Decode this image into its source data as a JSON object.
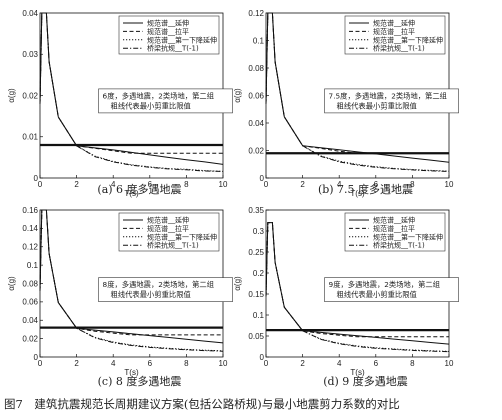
{
  "figure_caption": "图7　建筑抗震规范长周期建议方案(包括公路桥规)与最小地震剪力系数的对比",
  "legend_labels": [
    "规范谱__延伸",
    "规范谱__拉平",
    "规范谱__第一下降延伸",
    "桥梁抗规__T(-1)"
  ],
  "chart_data": [
    {
      "type": "line",
      "caption": "(a) 6 度多遇地震",
      "xlabel": "T(s)",
      "ylabel": "α(g)",
      "xlim": [
        0,
        10
      ],
      "ylim": [
        0,
        0.04
      ],
      "xticks": [
        "0",
        "2",
        "4",
        "6",
        "8",
        "10"
      ],
      "yticks": [
        "0",
        "0.01",
        "0.02",
        "0.03",
        "0.04"
      ],
      "annotation": [
        "6度，多遇地震，2类场地，第二组",
        "粗线代表最小剪重比限值"
      ],
      "min_shear_ratio": 0.008,
      "series": [
        {
          "name": "规范谱__延伸",
          "style": "solid",
          "x": [
            0,
            0.1,
            0.35,
            0.5,
            1,
            2,
            3,
            4,
            5,
            6,
            7,
            8,
            9,
            10
          ],
          "y": [
            0.018,
            0.04,
            0.04,
            0.0282,
            0.0148,
            0.0078,
            0.0073,
            0.0068,
            0.0062,
            0.0056,
            0.005,
            0.0044,
            0.0039,
            0.0033
          ]
        },
        {
          "name": "规范谱__拉平",
          "style": "dashed",
          "x": [
            0,
            0.1,
            0.35,
            0.5,
            1,
            2,
            3,
            4,
            5,
            6,
            7,
            8,
            9,
            10
          ],
          "y": [
            0.018,
            0.04,
            0.04,
            0.0282,
            0.0148,
            0.0078,
            0.0072,
            0.0066,
            0.006,
            0.006,
            0.006,
            0.006,
            0.006,
            0.006
          ]
        },
        {
          "name": "规范谱__第一下降延伸",
          "style": "dotted",
          "x": [
            0,
            0.1,
            0.35,
            0.5,
            1,
            2,
            3,
            4,
            5,
            6,
            7,
            8,
            9,
            10
          ],
          "y": [
            0.018,
            0.04,
            0.04,
            0.0282,
            0.0148,
            0.0078,
            0.0053,
            0.004,
            0.0032,
            0.0027,
            0.0023,
            0.0021,
            0.0018,
            0.0016
          ]
        },
        {
          "name": "桥梁抗规__T(-1)",
          "style": "dashdot",
          "x": [
            0,
            0.1,
            0.35,
            0.5,
            1,
            2,
            3,
            4,
            5,
            6,
            7,
            8,
            9,
            10
          ],
          "y": [
            0.018,
            0.04,
            0.04,
            0.0282,
            0.0148,
            0.0078,
            0.0052,
            0.0039,
            0.0031,
            0.0026,
            0.0022,
            0.002,
            0.0017,
            0.0016
          ]
        }
      ]
    },
    {
      "type": "line",
      "caption": "(b) 7.5 度多遇地震",
      "xlabel": "T(s)",
      "ylabel": "α(g)",
      "xlim": [
        0,
        10
      ],
      "ylim": [
        0,
        0.12
      ],
      "xticks": [
        "0",
        "2",
        "4",
        "6",
        "8",
        "10"
      ],
      "yticks": [
        "0",
        "0.02",
        "0.04",
        "0.06",
        "0.08",
        "0.1",
        "0.12"
      ],
      "annotation": [
        "7.5度，多遇地震，2类场地，第二组",
        "粗线代表最小剪重比限值"
      ],
      "min_shear_ratio": 0.018,
      "series": [
        {
          "name": "规范谱__延伸",
          "style": "solid",
          "x": [
            0,
            0.1,
            0.35,
            0.5,
            1,
            2,
            3,
            4,
            5,
            6,
            7,
            8,
            9,
            10
          ],
          "y": [
            0.054,
            0.12,
            0.12,
            0.0845,
            0.0445,
            0.0235,
            0.022,
            0.0205,
            0.019,
            0.0175,
            0.016,
            0.0145,
            0.013,
            0.0115
          ]
        },
        {
          "name": "规范谱__拉平",
          "style": "dashed",
          "x": [
            0,
            0.1,
            0.35,
            0.5,
            1,
            2,
            3,
            4,
            5,
            6,
            7,
            8,
            9,
            10
          ],
          "y": [
            0.054,
            0.12,
            0.12,
            0.0845,
            0.0445,
            0.0235,
            0.0215,
            0.0195,
            0.018,
            0.018,
            0.018,
            0.018,
            0.018,
            0.018
          ]
        },
        {
          "name": "规范谱__第一下降延伸",
          "style": "dotted",
          "x": [
            0,
            0.1,
            0.35,
            0.5,
            1,
            2,
            3,
            4,
            5,
            6,
            7,
            8,
            9,
            10
          ],
          "y": [
            0.054,
            0.12,
            0.12,
            0.0845,
            0.0445,
            0.0235,
            0.016,
            0.0122,
            0.0098,
            0.0082,
            0.007,
            0.0062,
            0.0055,
            0.005
          ]
        },
        {
          "name": "桥梁抗规__T(-1)",
          "style": "dashdot",
          "x": [
            0,
            0.1,
            0.35,
            0.5,
            1,
            2,
            3,
            4,
            5,
            6,
            7,
            8,
            9,
            10
          ],
          "y": [
            0.054,
            0.12,
            0.12,
            0.0845,
            0.0445,
            0.0235,
            0.0157,
            0.0118,
            0.0094,
            0.0078,
            0.0067,
            0.0059,
            0.0052,
            0.0047
          ]
        }
      ]
    },
    {
      "type": "line",
      "caption": "(c) 8 度多遇地震",
      "xlabel": "T(s)",
      "ylabel": "α(g)",
      "xlim": [
        0,
        10
      ],
      "ylim": [
        0,
        0.16
      ],
      "xticks": [
        "0",
        "2",
        "4",
        "6",
        "8",
        "10"
      ],
      "yticks": [
        "0",
        "0.02",
        "0.04",
        "0.06",
        "0.08",
        "0.1",
        "0.12",
        "0.14",
        "0.16"
      ],
      "annotation": [
        "8度，多遇地震，2类场地，第二组",
        "粗线代表最小剪重比限值"
      ],
      "min_shear_ratio": 0.032,
      "series": [
        {
          "name": "规范谱__延伸",
          "style": "solid",
          "x": [
            0,
            0.1,
            0.35,
            0.5,
            1,
            2,
            3,
            4,
            5,
            6,
            7,
            8,
            9,
            10
          ],
          "y": [
            0.072,
            0.16,
            0.16,
            0.1127,
            0.0593,
            0.0313,
            0.0293,
            0.0273,
            0.0253,
            0.0233,
            0.0213,
            0.0193,
            0.0173,
            0.0153
          ]
        },
        {
          "name": "规范谱__拉平",
          "style": "dashed",
          "x": [
            0,
            0.1,
            0.35,
            0.5,
            1,
            2,
            3,
            4,
            5,
            6,
            7,
            8,
            9,
            10
          ],
          "y": [
            0.072,
            0.16,
            0.16,
            0.1127,
            0.0593,
            0.0313,
            0.028,
            0.026,
            0.024,
            0.024,
            0.024,
            0.024,
            0.024,
            0.024
          ]
        },
        {
          "name": "规范谱__第一下降延伸",
          "style": "dotted",
          "x": [
            0,
            0.1,
            0.35,
            0.5,
            1,
            2,
            3,
            4,
            5,
            6,
            7,
            8,
            9,
            10
          ],
          "y": [
            0.072,
            0.16,
            0.16,
            0.1127,
            0.0593,
            0.0313,
            0.0213,
            0.0163,
            0.0131,
            0.011,
            0.0095,
            0.0083,
            0.0074,
            0.0067
          ]
        },
        {
          "name": "桥梁抗规__T(-1)",
          "style": "dashdot",
          "x": [
            0,
            0.1,
            0.35,
            0.5,
            1,
            2,
            3,
            4,
            5,
            6,
            7,
            8,
            9,
            10
          ],
          "y": [
            0.072,
            0.16,
            0.16,
            0.1127,
            0.0593,
            0.0313,
            0.0209,
            0.0157,
            0.0125,
            0.0104,
            0.009,
            0.0078,
            0.007,
            0.0063
          ]
        }
      ]
    },
    {
      "type": "line",
      "caption": "(d) 9 度多遇地震",
      "xlabel": "T(s)",
      "ylabel": "α(g)",
      "xlim": [
        0,
        10
      ],
      "ylim": [
        0,
        0.35
      ],
      "xticks": [
        "0",
        "2",
        "4",
        "6",
        "8",
        "10"
      ],
      "yticks": [
        "0",
        "0.05",
        "0.1",
        "0.15",
        "0.2",
        "0.25",
        "0.3",
        "0.35"
      ],
      "annotation": [
        "9度，多遇地震，2类场地，第二组",
        "粗线代表最小剪重比限值"
      ],
      "min_shear_ratio": 0.064,
      "series": [
        {
          "name": "规范谱__延伸",
          "style": "solid",
          "x": [
            0,
            0.1,
            0.35,
            0.5,
            1,
            2,
            3,
            4,
            5,
            6,
            7,
            8,
            9,
            10
          ],
          "y": [
            0.144,
            0.32,
            0.32,
            0.2254,
            0.1186,
            0.0626,
            0.0586,
            0.0546,
            0.0506,
            0.0466,
            0.0426,
            0.0386,
            0.0346,
            0.0306
          ]
        },
        {
          "name": "规范谱__拉平",
          "style": "dashed",
          "x": [
            0,
            0.1,
            0.35,
            0.5,
            1,
            2,
            3,
            4,
            5,
            6,
            7,
            8,
            9,
            10
          ],
          "y": [
            0.144,
            0.32,
            0.32,
            0.2254,
            0.1186,
            0.0626,
            0.056,
            0.052,
            0.048,
            0.048,
            0.048,
            0.048,
            0.048,
            0.048
          ]
        },
        {
          "name": "规范谱__第一下降延伸",
          "style": "dotted",
          "x": [
            0,
            0.1,
            0.35,
            0.5,
            1,
            2,
            3,
            4,
            5,
            6,
            7,
            8,
            9,
            10
          ],
          "y": [
            0.144,
            0.32,
            0.32,
            0.2254,
            0.1186,
            0.0626,
            0.0426,
            0.0326,
            0.0262,
            0.022,
            0.019,
            0.0166,
            0.0148,
            0.0134
          ]
        },
        {
          "name": "桥梁抗规__T(-1)",
          "style": "dashdot",
          "x": [
            0,
            0.1,
            0.35,
            0.5,
            1,
            2,
            3,
            4,
            5,
            6,
            7,
            8,
            9,
            10
          ],
          "y": [
            0.144,
            0.32,
            0.32,
            0.2254,
            0.1186,
            0.0626,
            0.0418,
            0.0314,
            0.025,
            0.0208,
            0.018,
            0.0156,
            0.014,
            0.0126
          ]
        }
      ]
    }
  ]
}
